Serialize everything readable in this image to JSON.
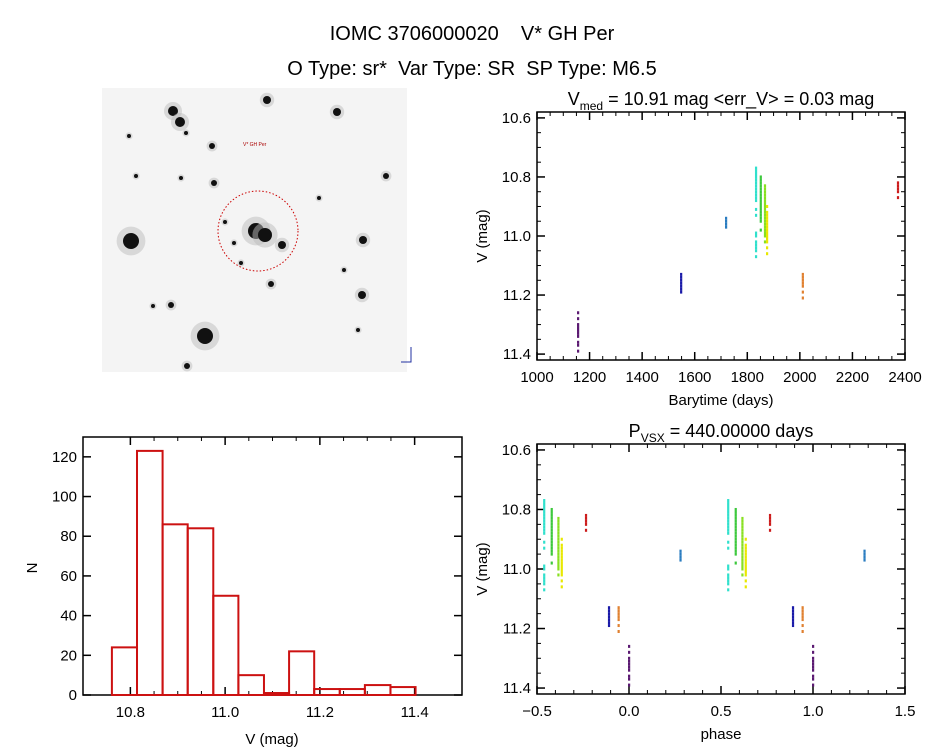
{
  "header": {
    "title": "IOMC 3706000020    V* GH Per",
    "subtitle": "O Type: sr*  Var Type: SR  SP Type: M6.5"
  },
  "finder_image": {
    "target_label": "V* GH Per",
    "circle_color": "#cc0000"
  },
  "chart_data": [
    {
      "type": "scatter",
      "id": "light_curve",
      "title": {
        "main": "V",
        "sub": "med",
        "rest": " = 10.91 mag <err_V> = 0.03 mag"
      },
      "xlabel": "Barytime (days)",
      "ylabel": "V (mag)",
      "xlim": [
        1000,
        2400
      ],
      "ylim": [
        11.42,
        10.58
      ],
      "y_reversed": true,
      "xticks": [
        1000,
        1200,
        1400,
        1600,
        1800,
        2000,
        2200,
        2400
      ],
      "xtick_labels": [
        "1000",
        "1200",
        "1400",
        "1600",
        "1800",
        "2000",
        "2200",
        "2400"
      ],
      "yticks": [
        10.6,
        10.8,
        11.0,
        11.2,
        11.4
      ],
      "ytick_labels": [
        "10.6",
        "10.8",
        "11.0",
        "11.2",
        "11.4"
      ],
      "series": [
        {
          "color": "#5b1a72",
          "time": 1156,
          "V": [
            11.26,
            11.28,
            11.3,
            11.31,
            11.32,
            11.33,
            11.34,
            11.36,
            11.37,
            11.39
          ]
        },
        {
          "color": "#1a1aa8",
          "time": 1548,
          "V": [
            11.13,
            11.14,
            11.15,
            11.16,
            11.17,
            11.18,
            11.19
          ]
        },
        {
          "color": "#2a7cc0",
          "time": 1719,
          "V": [
            10.94,
            10.95,
            10.96,
            10.97
          ]
        },
        {
          "color": "#30e0cc",
          "time": 1833,
          "V": [
            10.77,
            10.78,
            10.79,
            10.8,
            10.81,
            10.82,
            10.83,
            10.84,
            10.85,
            10.86,
            10.87,
            10.88,
            10.91,
            10.93,
            10.99,
            11.0,
            11.02,
            11.03,
            11.04,
            11.05,
            11.07
          ]
        },
        {
          "color": "#3cc83c",
          "time": 1851,
          "V": [
            10.8,
            10.81,
            10.82,
            10.83,
            10.84,
            10.85,
            10.86,
            10.87,
            10.88,
            10.89,
            10.9,
            10.91,
            10.92,
            10.93,
            10.94,
            10.95,
            10.98
          ]
        },
        {
          "color": "#88e020",
          "time": 1867,
          "V": [
            10.83,
            10.84,
            10.85,
            10.86,
            10.87,
            10.88,
            10.89,
            10.9,
            10.91,
            10.92,
            10.93,
            10.94,
            10.95,
            10.96,
            10.97,
            10.98,
            10.99,
            11.0,
            11.02
          ]
        },
        {
          "color": "#e8e800",
          "time": 1875,
          "V": [
            10.9,
            10.92,
            10.93,
            10.94,
            10.95,
            10.96,
            10.97,
            10.98,
            10.99,
            11.0,
            11.01,
            11.02,
            11.04,
            11.06
          ]
        },
        {
          "color": "#e08030",
          "time": 2011,
          "V": [
            11.13,
            11.14,
            11.15,
            11.16,
            11.17,
            11.19,
            11.21
          ]
        },
        {
          "color": "#cc1c1c",
          "time": 2373,
          "V": [
            10.82,
            10.83,
            10.84,
            10.85,
            10.87
          ]
        }
      ]
    },
    {
      "type": "bar",
      "id": "histogram",
      "xlabel": "V (mag)",
      "ylabel": "N",
      "xlim": [
        10.7,
        11.5
      ],
      "ylim": [
        0,
        130
      ],
      "xticks": [
        10.8,
        11.0,
        11.2,
        11.4
      ],
      "xtick_labels": [
        "10.8",
        "11.0",
        "11.2",
        "11.4"
      ],
      "yticks": [
        0,
        20,
        40,
        60,
        80,
        100,
        120
      ],
      "ytick_labels": [
        "0",
        "20",
        "40",
        "60",
        "80",
        "100",
        "120"
      ],
      "bin_edges": [
        10.761,
        10.814,
        10.868,
        10.921,
        10.975,
        11.028,
        11.082,
        11.135,
        11.188,
        11.242,
        11.295,
        11.349,
        11.402
      ],
      "values": [
        24,
        123,
        86,
        84,
        50,
        10,
        1,
        22,
        3,
        3,
        5,
        4
      ],
      "color": "#cc1111"
    },
    {
      "type": "scatter",
      "id": "phased_light_curve",
      "title": {
        "main": "P",
        "sub": "VSX",
        "rest": " = 440.00000 days"
      },
      "period_days": 440.0,
      "xlabel": "phase",
      "ylabel": "V (mag)",
      "xlim": [
        -0.5,
        1.5
      ],
      "ylim": [
        11.42,
        10.58
      ],
      "y_reversed": true,
      "xticks": [
        -0.5,
        0.0,
        0.5,
        1.0,
        1.5
      ],
      "xtick_labels": [
        "−0.5",
        "0.0",
        "0.5",
        "1.0",
        "1.5"
      ],
      "yticks": [
        10.6,
        10.8,
        11.0,
        11.2,
        11.4
      ],
      "ytick_labels": [
        "10.6",
        "10.8",
        "11.0",
        "11.2",
        "11.4"
      ],
      "phase_zero_time": 1156
    }
  ]
}
